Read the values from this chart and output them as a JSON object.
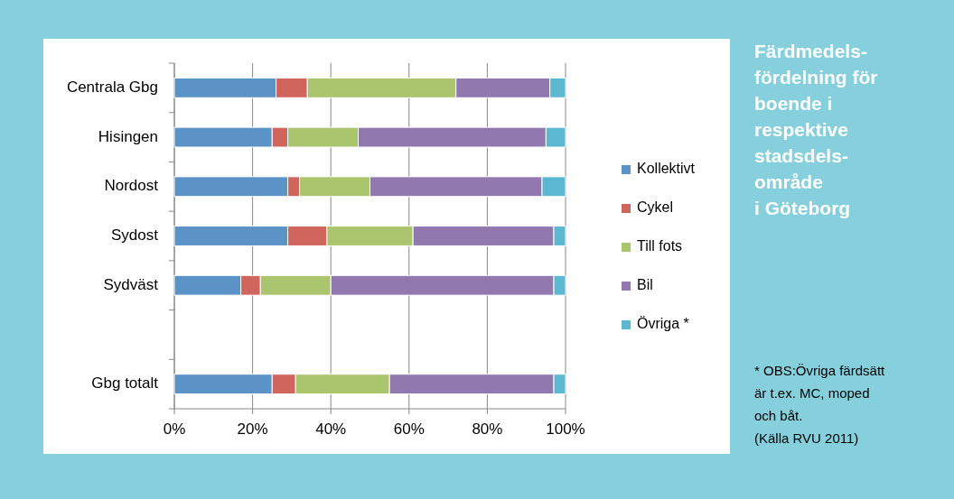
{
  "chart_data": {
    "type": "bar",
    "orientation": "horizontal",
    "stacked": true,
    "title": "Färdmedels-\nfördelning för\nboende i\nrespektive\nstadsdels-\nområde\ni Göteborg",
    "categories": [
      "Centrala Gbg",
      "Hisingen",
      "Nordost",
      "Sydost",
      "Sydväst",
      null,
      "Gbg totalt"
    ],
    "series": [
      {
        "name": "Kollektivt",
        "color": "#5b93c7",
        "values": [
          26,
          25,
          29,
          29,
          17,
          null,
          25
        ]
      },
      {
        "name": "Cykel",
        "color": "#cf655d",
        "values": [
          8,
          4,
          3,
          10,
          5,
          null,
          6
        ]
      },
      {
        "name": "Till fots",
        "color": "#abc46e",
        "values": [
          38,
          18,
          18,
          22,
          18,
          null,
          24
        ]
      },
      {
        "name": "Bil",
        "color": "#9179b0",
        "values": [
          24,
          48,
          44,
          36,
          57,
          null,
          42
        ]
      },
      {
        "name": "Övriga *",
        "color": "#5bb8d0",
        "values": [
          4,
          5,
          6,
          3,
          3,
          null,
          3
        ]
      }
    ],
    "xlim": [
      0,
      100
    ],
    "xticks": [
      {
        "value": 0,
        "label": "0%"
      },
      {
        "value": 20,
        "label": "20%"
      },
      {
        "value": 40,
        "label": "40%"
      },
      {
        "value": 60,
        "label": "60%"
      },
      {
        "value": 80,
        "label": "80%"
      },
      {
        "value": 100,
        "label": "100%"
      }
    ],
    "grid": "x",
    "legend": "right",
    "annotations": [
      "* OBS:Övriga färdsätt\när t.ex. MC, moped\noch båt.",
      "(Källa RVU 2011)"
    ]
  }
}
